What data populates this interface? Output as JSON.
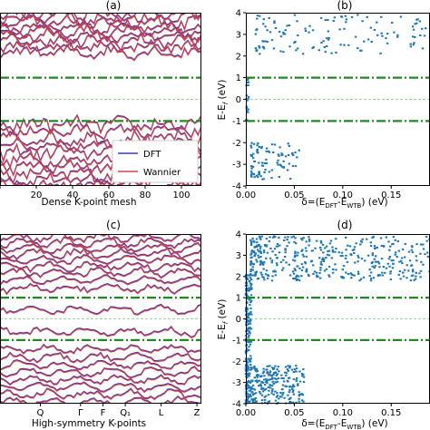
{
  "chart_data": [
    {
      "panel": "(a)",
      "type": "line",
      "title": "(a)",
      "xlabel": "Dense K-point mesh",
      "ylabel": "",
      "xlim": [
        0,
        111
      ],
      "ylim": [
        -4,
        4
      ],
      "xticks": [
        0,
        20,
        40,
        60,
        80,
        100
      ],
      "xtick_labels": [
        "20",
        "40",
        "60",
        "80",
        "100"
      ],
      "legend": {
        "placement": "lower-right",
        "entries": [
          "DFT",
          "Wannier"
        ]
      },
      "series": [
        {
          "name": "DFT",
          "color": "#3b3bb3"
        },
        {
          "name": "Wannier",
          "color": "#d5424a"
        }
      ],
      "reference_lines": [
        {
          "y": 1,
          "style": "dash-dot",
          "color": "#1f8a1f"
        },
        {
          "y": -1,
          "style": "dash-dot",
          "color": "#1f8a1f"
        },
        {
          "y": 0,
          "style": "dashed",
          "color": "#7cc47c"
        }
      ],
      "band_levels": [
        -3.95,
        -3.7,
        -3.45,
        -3.1,
        -2.8,
        -2.45,
        -2.1,
        -1.8,
        -1.45,
        -1.15,
        2.2,
        2.45,
        2.7,
        2.95,
        3.15,
        3.35,
        3.55,
        3.75,
        3.95
      ]
    },
    {
      "panel": "(b)",
      "type": "scatter",
      "title": "(b)",
      "xlabel": "δ=(E_DFT-E_WTB) (eV)",
      "ylabel": "E-E_f (eV)",
      "xlim": [
        0,
        0.19
      ],
      "ylim": [
        -4,
        4
      ],
      "xticks": [
        0.0,
        0.05,
        0.1,
        0.15
      ],
      "xtick_labels": [
        "0.00",
        "0.05",
        "0.10",
        "0.15"
      ],
      "yticks": [
        -4,
        -3,
        -2,
        -1,
        0,
        1,
        2,
        3,
        4
      ],
      "color": "#1f77b4",
      "reference_lines": [
        {
          "y": 1,
          "style": "dash-dot",
          "color": "#1f8a1f"
        },
        {
          "y": -1,
          "style": "dash-dot",
          "color": "#1f8a1f"
        },
        {
          "y": 0,
          "style": "dashed",
          "color": "#7cc47c"
        }
      ],
      "clusters": [
        {
          "x": [
            0.0,
            0.003
          ],
          "y": [
            -1.1,
            1.1
          ]
        },
        {
          "x": [
            0.005,
            0.055
          ],
          "y": [
            -3.7,
            -2.0
          ]
        },
        {
          "x": [
            0.01,
            0.19
          ],
          "y": [
            2.1,
            3.9
          ]
        }
      ]
    },
    {
      "panel": "(c)",
      "type": "line",
      "title": "(c)",
      "xlabel": "High-symmetry K-points",
      "ylabel": "",
      "xlim": [
        0,
        9
      ],
      "ylim": [
        -4,
        4
      ],
      "xticks": [
        1.8,
        3.6,
        4.6,
        5.6,
        7.2,
        8.8
      ],
      "xtick_labels": [
        "Q",
        "Γ",
        "F",
        "Q₁",
        "L",
        "Z"
      ],
      "series": [
        {
          "name": "DFT",
          "color": "#3b3bb3"
        },
        {
          "name": "Wannier",
          "color": "#d5424a"
        }
      ],
      "reference_lines": [
        {
          "y": 1,
          "style": "dash-dot",
          "color": "#1f8a1f"
        },
        {
          "y": -1,
          "style": "dash-dot",
          "color": "#1f8a1f"
        },
        {
          "y": 0,
          "style": "dashed",
          "color": "#7cc47c"
        }
      ],
      "band_levels": [
        -3.9,
        -3.55,
        -3.2,
        -2.85,
        -2.5,
        -2.15,
        -1.8,
        -1.4,
        -0.6,
        0.45,
        1.45,
        1.85,
        2.2,
        2.5,
        2.8,
        3.1,
        3.35,
        3.6,
        3.85
      ]
    },
    {
      "panel": "(d)",
      "type": "scatter",
      "title": "(d)",
      "xlabel": "δ=(E_DFT-E_WTB) (eV)",
      "ylabel": "E-E_f (eV)",
      "xlim": [
        0,
        0.19
      ],
      "ylim": [
        -4,
        4
      ],
      "xticks": [
        0.0,
        0.05,
        0.1,
        0.15
      ],
      "xtick_labels": [
        "0.00",
        "0.05",
        "0.10",
        "0.15"
      ],
      "yticks": [
        -4,
        -3,
        -2,
        -1,
        0,
        1,
        2,
        3,
        4
      ],
      "color": "#1f77b4",
      "reference_lines": [
        {
          "y": 1,
          "style": "dash-dot",
          "color": "#1f8a1f"
        },
        {
          "y": -1,
          "style": "dash-dot",
          "color": "#1f8a1f"
        },
        {
          "y": 0,
          "style": "dashed",
          "color": "#7cc47c"
        }
      ],
      "clusters": [
        {
          "x": [
            0.0,
            0.006
          ],
          "y": [
            -4,
            2.2
          ]
        },
        {
          "x": [
            0.0,
            0.06
          ],
          "y": [
            -4,
            -2.2
          ]
        },
        {
          "x": [
            0.005,
            0.19
          ],
          "y": [
            1.8,
            3.9
          ]
        }
      ]
    }
  ]
}
